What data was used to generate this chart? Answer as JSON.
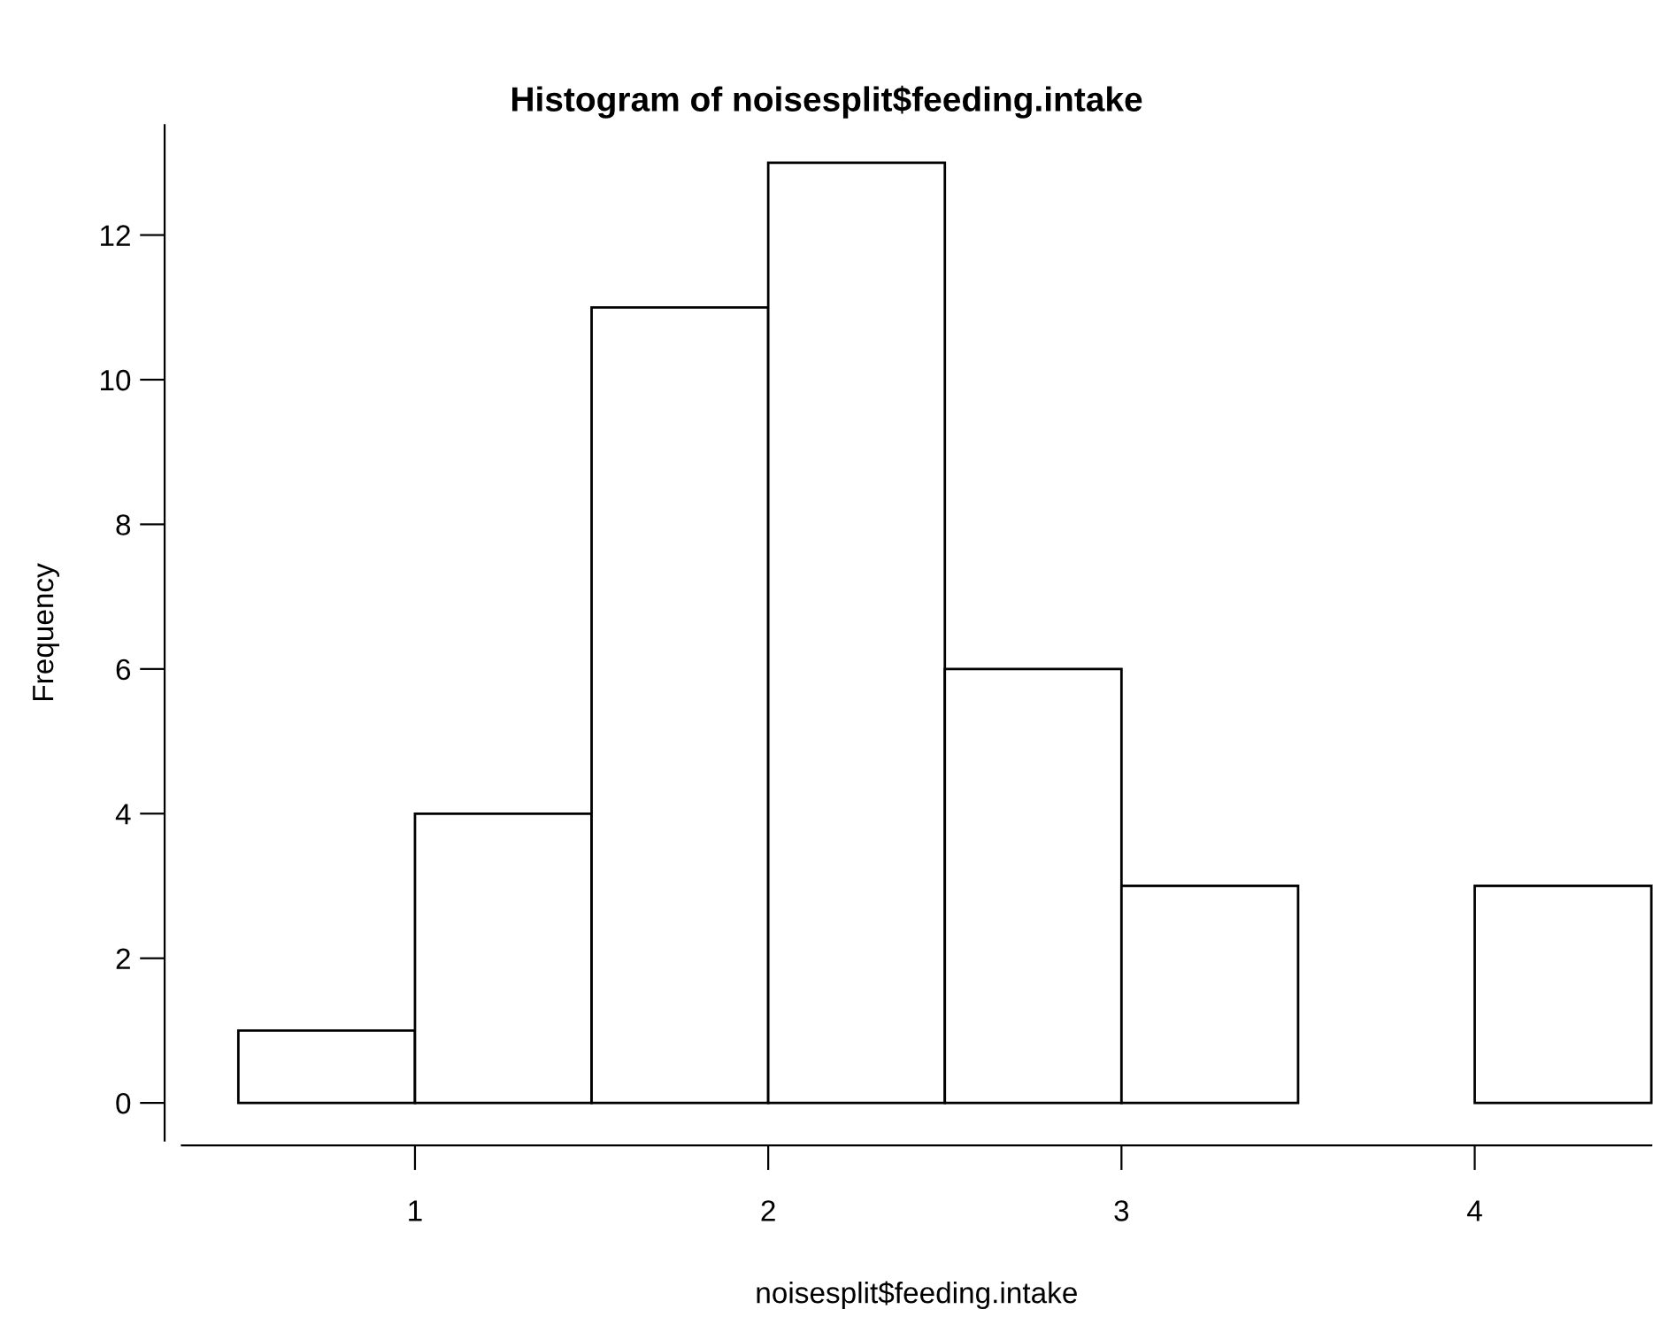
{
  "chart_data": {
    "type": "histogram",
    "title": "Histogram of noisesplit$feeding.intake",
    "xlabel": "noisesplit$feeding.intake",
    "ylabel": "Frequency",
    "bins": [
      0.5,
      1.0,
      1.5,
      2.0,
      2.5,
      3.0,
      3.5,
      4.0,
      4.5
    ],
    "values": [
      1,
      4,
      11,
      13,
      6,
      3,
      0,
      3
    ],
    "color": "#ffffff",
    "xlim": [
      0.34,
      4.5
    ],
    "ylim": [
      -0.52,
      13.52
    ],
    "xticks": [
      1,
      2,
      3,
      4
    ],
    "yticks": [
      0,
      2,
      4,
      6,
      8,
      10,
      12
    ],
    "grid": false
  }
}
